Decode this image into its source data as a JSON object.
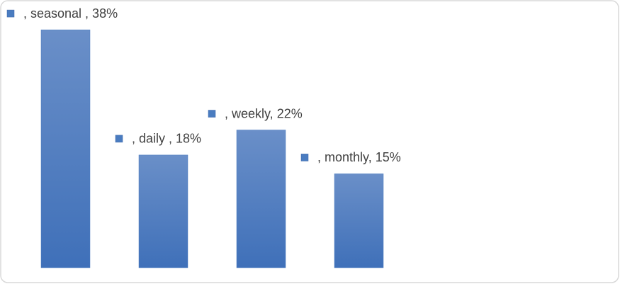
{
  "chart_data": {
    "type": "bar",
    "values": [
      38,
      18,
      22,
      15
    ],
    "value_labels": [
      ", seasonal , 38%",
      ", daily , 18%",
      ", weekly, 22%",
      ", monthly, 15%"
    ],
    "color": "#4a7cc0"
  }
}
